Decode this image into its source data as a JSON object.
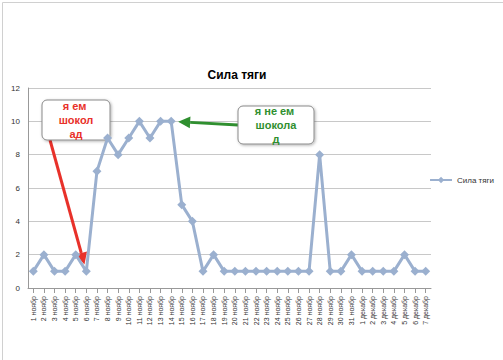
{
  "chart_data": {
    "type": "line",
    "title": "Сила тяги",
    "categories": [
      "1 ноябр",
      "2 ноябр",
      "3 ноябр",
      "4 ноябр",
      "5 ноябр",
      "6 ноябр",
      "7 ноябр",
      "8 ноябр",
      "9 ноябр",
      "10 ноябр",
      "11 ноябр",
      "12 ноябр",
      "13 ноябр",
      "14 ноябр",
      "15 ноябр",
      "16 ноябр",
      "17 ноябр",
      "18 ноябр",
      "19 ноябр",
      "20 ноябр",
      "21 ноябр",
      "22 ноябр",
      "23 ноябр",
      "24 ноябр",
      "25 ноябр",
      "26 ноябр",
      "27 ноябр",
      "28 ноябр",
      "29 ноябр",
      "30 ноябр",
      "31 ноябр",
      "1 декабр",
      "2 декабр",
      "3 декабр",
      "4 декабр",
      "5 декабр",
      "6 декабр",
      "7 декабр"
    ],
    "series": [
      {
        "name": "Сила тяги",
        "color": "#9bb0cf",
        "marker": "diamond",
        "values": [
          1,
          2,
          1,
          1,
          2,
          1,
          7,
          9,
          8,
          9,
          10,
          9,
          10,
          10,
          5,
          4,
          1,
          2,
          1,
          1,
          1,
          1,
          1,
          1,
          1,
          1,
          1,
          8,
          1,
          1,
          2,
          1,
          1,
          1,
          1,
          2,
          1,
          1
        ]
      }
    ],
    "ylim": [
      0,
      12
    ],
    "yticks": [
      0,
      2,
      4,
      6,
      8,
      10,
      12
    ],
    "grid": true,
    "legend": "right",
    "annotations": [
      {
        "text": "я ем шоколад",
        "color": "#e8312a",
        "category": "6 ноябр"
      },
      {
        "text": "я не ем шоколад",
        "color": "#2f8f2f",
        "category": "14 ноябр"
      }
    ]
  }
}
